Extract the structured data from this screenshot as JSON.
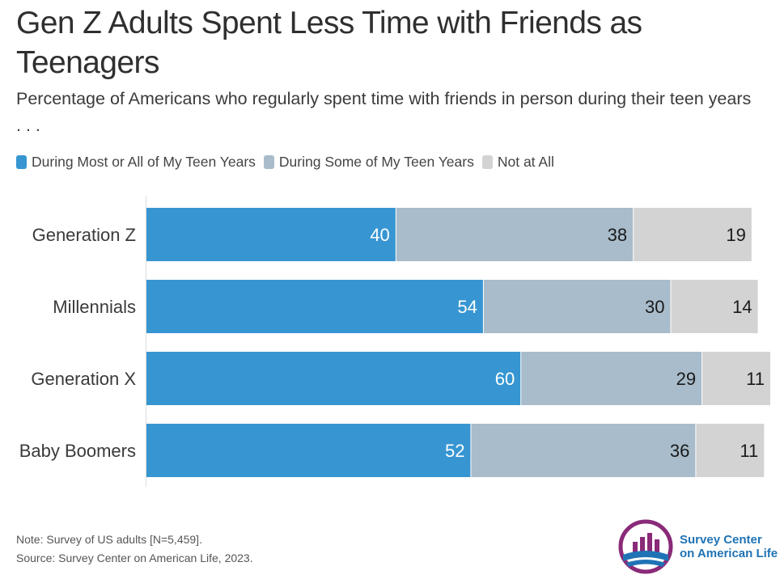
{
  "title": "Gen Z Adults Spent Less Time with Friends as Teenagers",
  "subtitle": "Percentage of Americans who regularly spent time with friends in person during their teen years . . .",
  "colors": {
    "most": "#3796d2",
    "some": "#a8bccb",
    "none": "#d3d3d3",
    "logo_purple": "#8a2a78",
    "logo_blue": "#1f73b5"
  },
  "chart_data": {
    "type": "bar",
    "orientation": "horizontal",
    "stacked": true,
    "categories": [
      "Generation Z",
      "Millennials",
      "Generation X",
      "Baby Boomers"
    ],
    "series": [
      {
        "name": "During Most or All of My Teen Years",
        "values": [
          40,
          54,
          60,
          52
        ]
      },
      {
        "name": "During Some of My Teen Years",
        "values": [
          38,
          30,
          29,
          36
        ]
      },
      {
        "name": "Not at All",
        "values": [
          19,
          14,
          11,
          11
        ]
      }
    ],
    "xlim": [
      0,
      100
    ],
    "legend_position": "top-left",
    "data_labels": true,
    "grid": false
  },
  "note": "Note: Survey of US adults [N=5,459].",
  "source": "Source: Survey Center on American Life, 2023.",
  "logo": {
    "line1": "Survey Center",
    "line2": "on American Life"
  }
}
